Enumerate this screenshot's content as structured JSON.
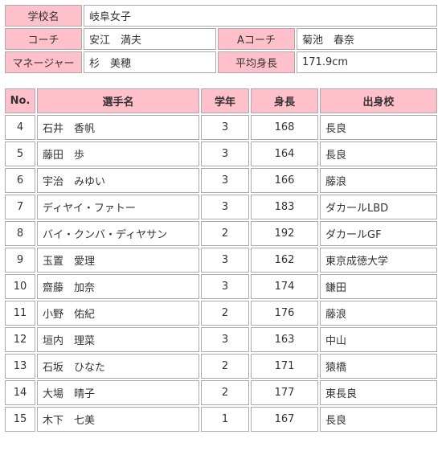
{
  "info": {
    "school_label": "学校名",
    "school": "岐阜女子",
    "coach_label": "コーチ",
    "coach": "安江　満夫",
    "acoach_label": "Aコーチ",
    "acoach": "菊池　春奈",
    "manager_label": "マネージャー",
    "manager": "杉　美穂",
    "avg_height_label": "平均身長",
    "avg_height": "171.9cm"
  },
  "roster": {
    "headers": [
      "No.",
      "選手名",
      "学年",
      "身長",
      "出身校"
    ],
    "rows": [
      {
        "no": "4",
        "name": "石井　香帆",
        "grade": "3",
        "height": "168",
        "school": "長良"
      },
      {
        "no": "5",
        "name": "藤田　歩",
        "grade": "3",
        "height": "164",
        "school": "長良"
      },
      {
        "no": "6",
        "name": "宇治　みゆい",
        "grade": "3",
        "height": "166",
        "school": "藤浪"
      },
      {
        "no": "7",
        "name": "ディヤイ・ファトー",
        "grade": "3",
        "height": "183",
        "school": "ダカールLBD"
      },
      {
        "no": "8",
        "name": "バイ・クンバ・ディヤサン",
        "grade": "2",
        "height": "192",
        "school": "ダカールGF"
      },
      {
        "no": "9",
        "name": "玉置　愛理",
        "grade": "3",
        "height": "162",
        "school": "東京成徳大学"
      },
      {
        "no": "10",
        "name": "齋藤　加奈",
        "grade": "3",
        "height": "174",
        "school": "鎌田"
      },
      {
        "no": "11",
        "name": "小野　佑紀",
        "grade": "2",
        "height": "176",
        "school": "藤浪"
      },
      {
        "no": "12",
        "name": "垣内　理菜",
        "grade": "3",
        "height": "163",
        "school": "中山"
      },
      {
        "no": "13",
        "name": "石坂　ひなた",
        "grade": "2",
        "height": "171",
        "school": "猿橋"
      },
      {
        "no": "14",
        "name": "大場　晴子",
        "grade": "2",
        "height": "177",
        "school": "東長良"
      },
      {
        "no": "15",
        "name": "木下　七美",
        "grade": "1",
        "height": "167",
        "school": "長良"
      }
    ]
  },
  "colors": {
    "header_bg": "#ffc0cb",
    "border": "#aaaaaa"
  }
}
